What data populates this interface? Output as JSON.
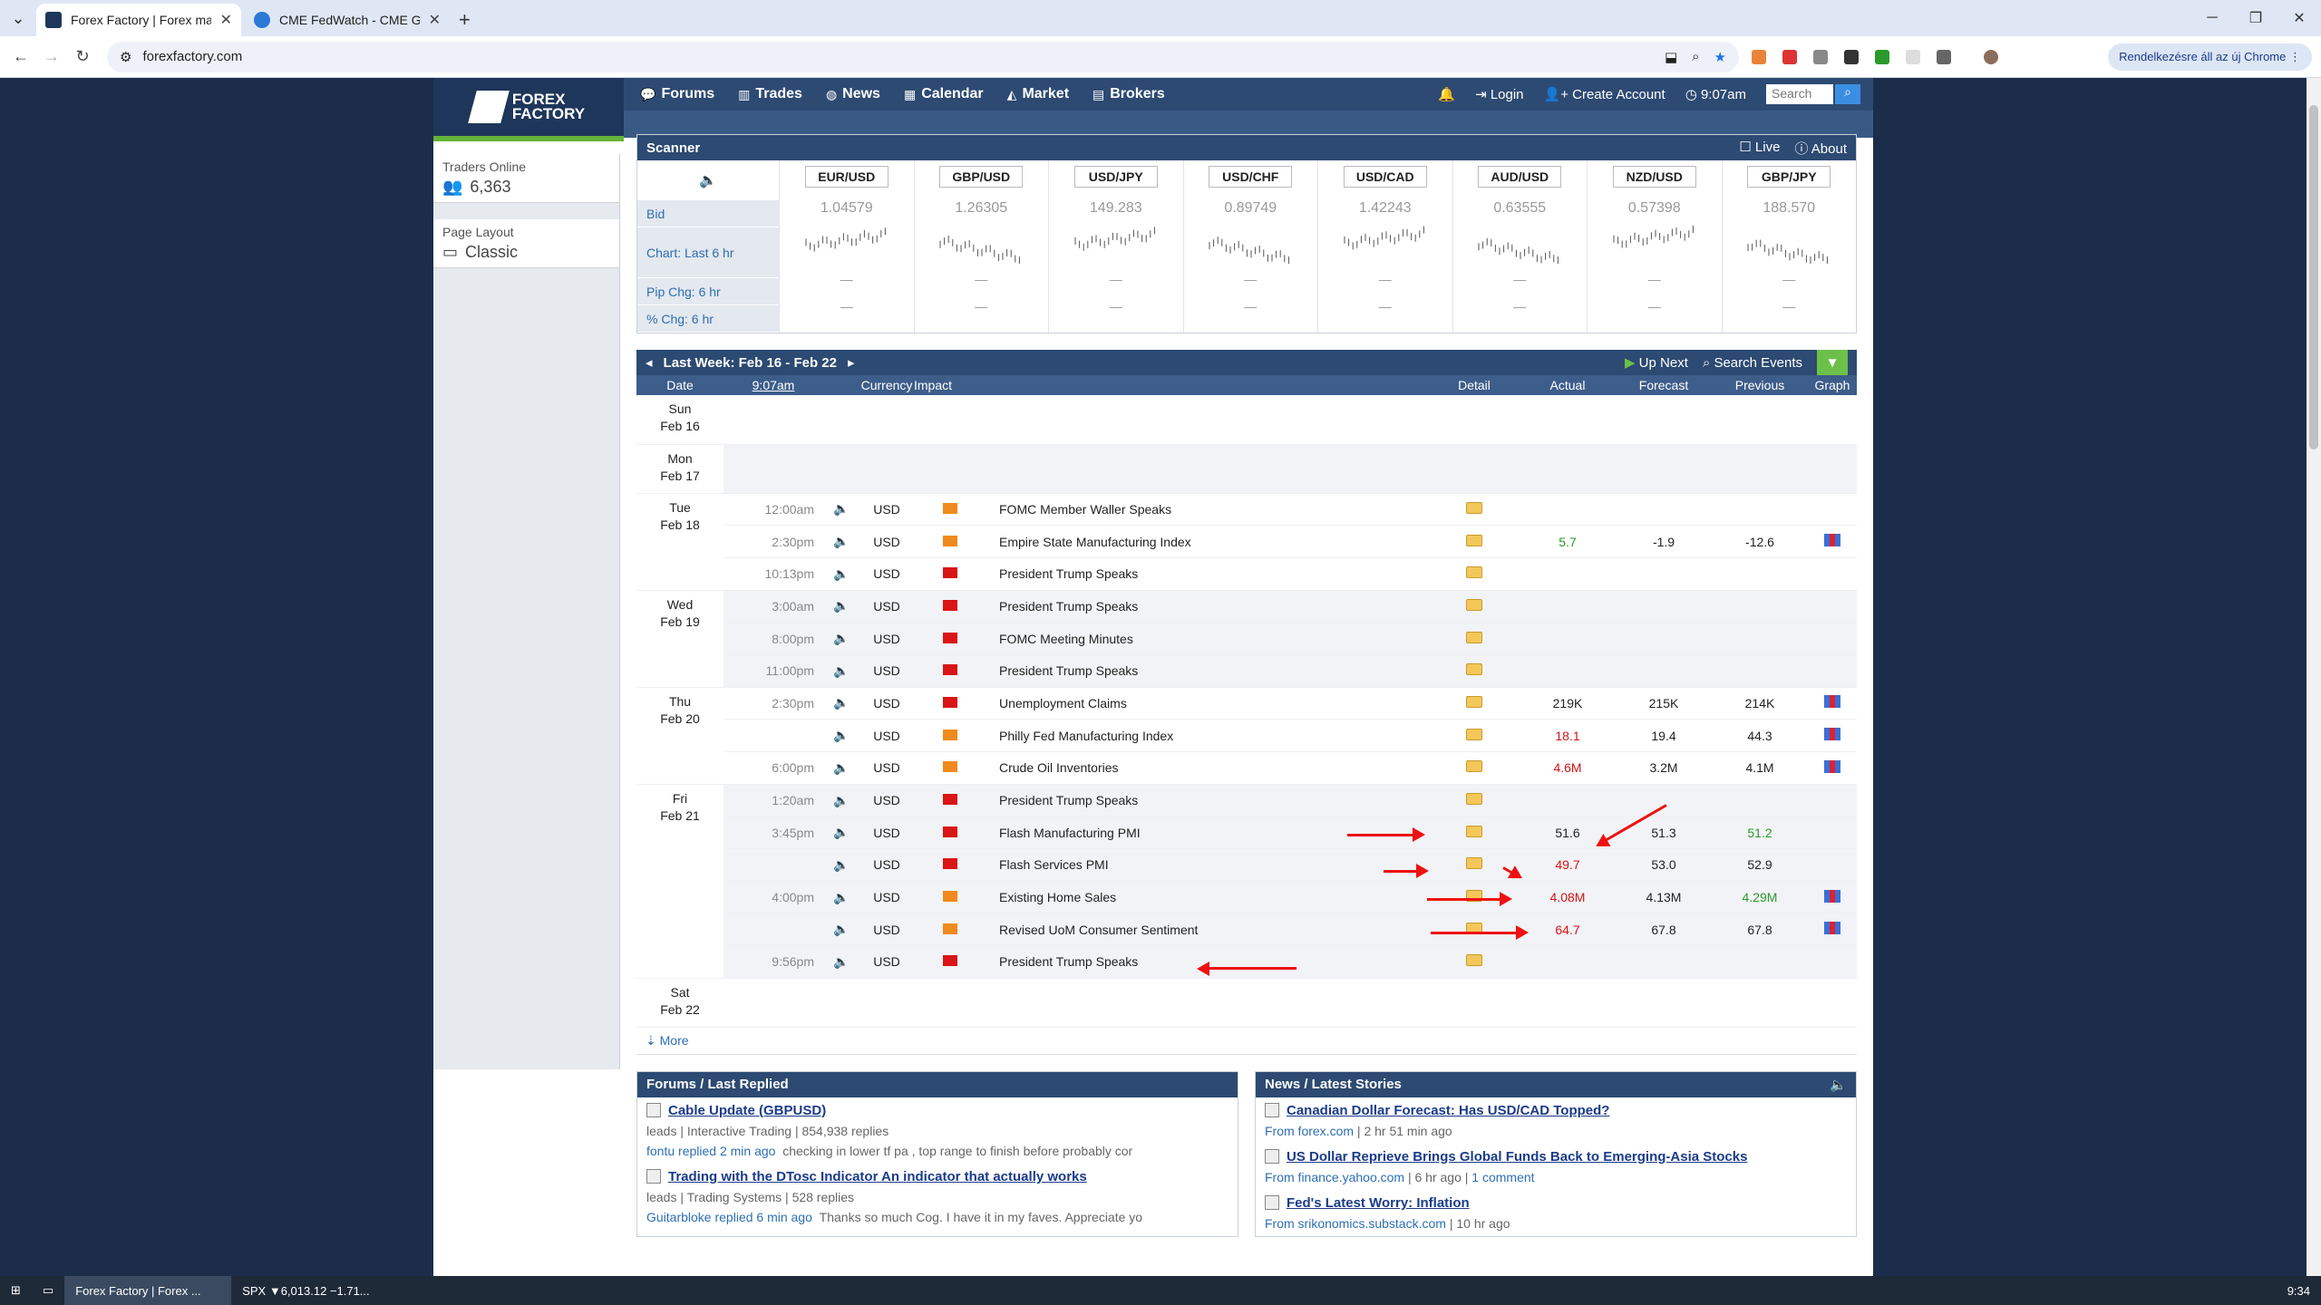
{
  "browser": {
    "tabs": [
      {
        "title": "Forex Factory | Forex markets fo",
        "active": true,
        "favicon_color": "#1e365a"
      },
      {
        "title": "CME FedWatch - CME Group",
        "active": false,
        "favicon_color": "#2b7ad6"
      }
    ],
    "url": "forexfactory.com",
    "profile_label": "Rendelkezésre áll az új Chrome"
  },
  "header": {
    "logo_line1": "FOREX",
    "logo_line2": "FACTORY",
    "menu": [
      "Forums",
      "Trades",
      "News",
      "Calendar",
      "Market",
      "Brokers"
    ],
    "login": "Login",
    "create_account": "Create Account",
    "time": "9:07am",
    "search_placeholder": "Search"
  },
  "sidebar": {
    "traders_online_label": "Traders Online",
    "traders_online_value": "6,363",
    "page_layout_label": "Page Layout",
    "page_layout_value": "Classic"
  },
  "scanner": {
    "title": "Scanner",
    "live": "Live",
    "about": "About",
    "rows": [
      "Bid",
      "Chart: Last 6 hr",
      "Pip Chg: 6 hr",
      "% Chg: 6 hr"
    ],
    "pairs": [
      {
        "name": "EUR/USD",
        "bid": "1.04579"
      },
      {
        "name": "GBP/USD",
        "bid": "1.26305"
      },
      {
        "name": "USD/JPY",
        "bid": "149.283"
      },
      {
        "name": "USD/CHF",
        "bid": "0.89749"
      },
      {
        "name": "USD/CAD",
        "bid": "1.42243"
      },
      {
        "name": "AUD/USD",
        "bid": "0.63555"
      },
      {
        "name": "NZD/USD",
        "bid": "0.57398"
      },
      {
        "name": "GBP/JPY",
        "bid": "188.570"
      }
    ],
    "dash": "—"
  },
  "calendar": {
    "week": "Last Week: Feb 16 - Feb 22",
    "up_next": "Up Next",
    "search_events": "Search Events",
    "columns": {
      "date": "Date",
      "time": "9:07am",
      "currency": "Currency",
      "impact": "Impact",
      "detail": "Detail",
      "actual": "Actual",
      "forecast": "Forecast",
      "previous": "Previous",
      "graph": "Graph"
    },
    "days": [
      {
        "day": "Sun",
        "date": "Feb 16",
        "events": []
      },
      {
        "day": "Mon",
        "date": "Feb 17",
        "events": []
      },
      {
        "day": "Tue",
        "date": "Feb 18",
        "events": [
          {
            "time": "12:00am",
            "cur": "USD",
            "impact": "orange",
            "name": "FOMC Member Waller Speaks",
            "actual": "",
            "forecast": "",
            "previous": "",
            "graph": false
          },
          {
            "time": "2:30pm",
            "cur": "USD",
            "impact": "orange",
            "name": "Empire State Manufacturing Index",
            "actual": "5.7",
            "actual_color": "grn",
            "forecast": "-1.9",
            "previous": "-12.6",
            "graph": true
          },
          {
            "time": "10:13pm",
            "cur": "USD",
            "impact": "red",
            "name": "President Trump Speaks",
            "actual": "",
            "forecast": "",
            "previous": "",
            "graph": false
          }
        ]
      },
      {
        "day": "Wed",
        "date": "Feb 19",
        "events": [
          {
            "time": "3:00am",
            "cur": "USD",
            "impact": "red",
            "name": "President Trump Speaks",
            "actual": "",
            "forecast": "",
            "previous": "",
            "graph": false
          },
          {
            "time": "8:00pm",
            "cur": "USD",
            "impact": "red",
            "name": "FOMC Meeting Minutes",
            "actual": "",
            "forecast": "",
            "previous": "",
            "graph": false
          },
          {
            "time": "11:00pm",
            "cur": "USD",
            "impact": "red",
            "name": "President Trump Speaks",
            "actual": "",
            "forecast": "",
            "previous": "",
            "graph": false
          }
        ]
      },
      {
        "day": "Thu",
        "date": "Feb 20",
        "events": [
          {
            "time": "2:30pm",
            "cur": "USD",
            "impact": "red",
            "name": "Unemployment Claims",
            "actual": "219K",
            "forecast": "215K",
            "previous": "214K",
            "graph": true
          },
          {
            "time": "",
            "cur": "USD",
            "impact": "orange",
            "name": "Philly Fed Manufacturing Index",
            "actual": "18.1",
            "actual_color": "red",
            "forecast": "19.4",
            "previous": "44.3",
            "graph": true
          },
          {
            "time": "6:00pm",
            "cur": "USD",
            "impact": "orange",
            "name": "Crude Oil Inventories",
            "actual": "4.6M",
            "actual_color": "red",
            "forecast": "3.2M",
            "previous": "4.1M",
            "graph": true
          }
        ]
      },
      {
        "day": "Fri",
        "date": "Feb 21",
        "events": [
          {
            "time": "1:20am",
            "cur": "USD",
            "impact": "red",
            "name": "President Trump Speaks",
            "actual": "",
            "forecast": "",
            "previous": "",
            "graph": false
          },
          {
            "time": "3:45pm",
            "cur": "USD",
            "impact": "red",
            "name": "Flash Manufacturing PMI",
            "actual": "51.6",
            "forecast": "51.3",
            "previous": "51.2",
            "previous_color": "grn",
            "graph": false
          },
          {
            "time": "",
            "cur": "USD",
            "impact": "red",
            "name": "Flash Services PMI",
            "actual": "49.7",
            "actual_color": "red",
            "forecast": "53.0",
            "previous": "52.9",
            "graph": false
          },
          {
            "time": "4:00pm",
            "cur": "USD",
            "impact": "orange",
            "name": "Existing Home Sales",
            "actual": "4.08M",
            "actual_color": "red",
            "forecast": "4.13M",
            "previous": "4.29M",
            "previous_color": "grn",
            "graph": true
          },
          {
            "time": "",
            "cur": "USD",
            "impact": "orange",
            "name": "Revised UoM Consumer Sentiment",
            "actual": "64.7",
            "actual_color": "red",
            "forecast": "67.8",
            "previous": "67.8",
            "graph": true
          },
          {
            "time": "9:56pm",
            "cur": "USD",
            "impact": "red",
            "name": "President Trump Speaks",
            "actual": "",
            "forecast": "",
            "previous": "",
            "graph": false
          }
        ]
      },
      {
        "day": "Sat",
        "date": "Feb 22",
        "events": []
      }
    ],
    "more": "More"
  },
  "forums": {
    "title": "Forums / Last Replied",
    "items": [
      {
        "title": "Cable Update (GBPUSD)",
        "meta": "leads | Interactive Trading | 854,938 replies",
        "reply": "fontu replied 2 min ago",
        "snippet": "checking in lower tf pa , top range to finish before probably cor"
      },
      {
        "title": "Trading with the DTosc Indicator An indicator that actually works",
        "meta": "leads | Trading Systems | 528 replies",
        "reply": "Guitarbloke replied 6 min ago",
        "snippet": "Thanks so much Cog. I have it in my faves. Appreciate yo"
      }
    ]
  },
  "news": {
    "title": "News / Latest Stories",
    "items": [
      {
        "title": "Canadian Dollar Forecast: Has USD/CAD Topped?",
        "source": "From forex.com",
        "age": "2 hr 51 min ago"
      },
      {
        "title": "US Dollar Reprieve Brings Global Funds Back to Emerging-Asia Stocks",
        "source": "From finance.yahoo.com",
        "age": "6 hr ago",
        "comments": "1 comment"
      },
      {
        "title": "Fed's Latest Worry: Inflation",
        "source": "From srikonomics.substack.com",
        "age": "10 hr ago"
      }
    ]
  },
  "taskbar": {
    "item1": "Forex Factory | Forex ...",
    "item2": "SPX ▼6,013.12 −1.71...",
    "clock": "9:34"
  }
}
